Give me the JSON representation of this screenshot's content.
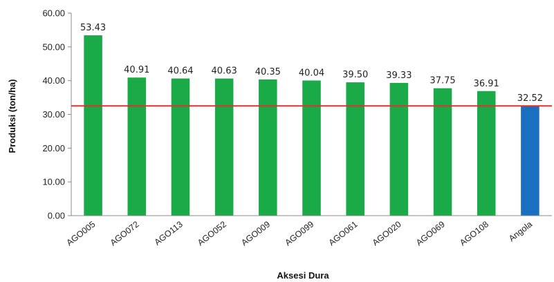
{
  "chart_data": {
    "type": "bar",
    "xlabel": "Aksesi Dura",
    "ylabel": "Produksi (ton/ha)",
    "ylim": [
      0,
      60
    ],
    "yticks": [
      "0.00",
      "10.00",
      "20.00",
      "30.00",
      "40.00",
      "50.00",
      "60.00"
    ],
    "grid": false,
    "categories": [
      "AGO005",
      "AGO072",
      "AGO113",
      "AGO052",
      "AGO009",
      "AGO099",
      "AGO061",
      "AGO020",
      "AGO069",
      "AGO108",
      "Angola"
    ],
    "values": [
      53.43,
      40.91,
      40.64,
      40.63,
      40.35,
      40.04,
      39.5,
      39.33,
      37.75,
      36.91,
      32.52
    ],
    "value_labels": [
      "53.43",
      "40.91",
      "40.64",
      "40.63",
      "40.35",
      "40.04",
      "39.50",
      "39.33",
      "37.75",
      "36.91",
      "32.52"
    ],
    "bar_colors": [
      "#1aab48",
      "#1aab48",
      "#1aab48",
      "#1aab48",
      "#1aab48",
      "#1aab48",
      "#1aab48",
      "#1aab48",
      "#1aab48",
      "#1aab48",
      "#1a6fc0"
    ],
    "reference_line": {
      "value": 32.52,
      "color": "#e03030"
    }
  }
}
